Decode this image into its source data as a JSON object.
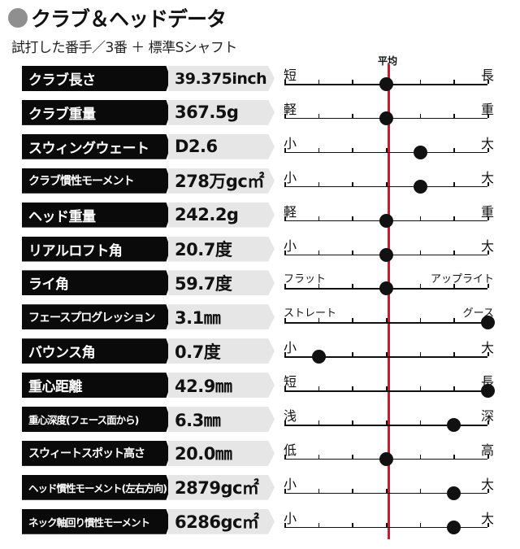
{
  "header": {
    "title": "クラブ＆ヘッドデータ",
    "subtitle": "試打した番手／3番 ＋ 標準Sシャフト"
  },
  "scale_header": {
    "average_label": "平均"
  },
  "colors": {
    "average_line": "#cc1b2e",
    "label_bg": "#0a0a0a",
    "value_bg": "#e6e6e6"
  },
  "rows": [
    {
      "label": "クラブ長さ",
      "value": "39.375inch",
      "scale_left": "短",
      "scale_right": "長",
      "position": 0.5
    },
    {
      "label": "クラブ重量",
      "value": "367.5g",
      "scale_left": "軽",
      "scale_right": "重",
      "position": 0.5
    },
    {
      "label": "スウィングウェート",
      "value": "D2.6",
      "scale_left": "小",
      "scale_right": "大",
      "position": 0.667
    },
    {
      "label": "クラブ慣性モーメント",
      "value": "278万gc㎡",
      "scale_left": "小",
      "scale_right": "大",
      "position": 0.667
    },
    {
      "label": "ヘッド重量",
      "value": "242.2g",
      "scale_left": "軽",
      "scale_right": "重",
      "position": 0.5
    },
    {
      "label": "リアルロフト角",
      "value": "20.7度",
      "scale_left": "小",
      "scale_right": "大",
      "position": 0.5
    },
    {
      "label": "ライ角",
      "value": "59.7度",
      "scale_left": "フラット",
      "scale_right": "アップライト",
      "position": 0.5
    },
    {
      "label": "フェースプログレッション",
      "value": "3.1㎜",
      "scale_left": "ストレート",
      "scale_right": "グース",
      "position": 1.0
    },
    {
      "label": "バウンス角",
      "value": "0.7度",
      "scale_left": "小",
      "scale_right": "大",
      "position": 0.167
    },
    {
      "label": "重心距離",
      "value": "42.9㎜",
      "scale_left": "短",
      "scale_right": "長",
      "position": 1.0
    },
    {
      "label": "重心深度(フェース面から)",
      "value": "6.3㎜",
      "scale_left": "浅",
      "scale_right": "深",
      "position": 0.833
    },
    {
      "label": "スウィートスポット高さ",
      "value": "20.0㎜",
      "scale_left": "低",
      "scale_right": "高",
      "position": 0.5
    },
    {
      "label": "ヘッド慣性モーメント(左右方向)",
      "value": "2879gc㎡",
      "scale_left": "小",
      "scale_right": "大",
      "position": 0.833
    },
    {
      "label": "ネック軸回り慣性モーメント",
      "value": "6286gc㎡",
      "scale_left": "小",
      "scale_right": "大",
      "position": 0.833
    }
  ]
}
